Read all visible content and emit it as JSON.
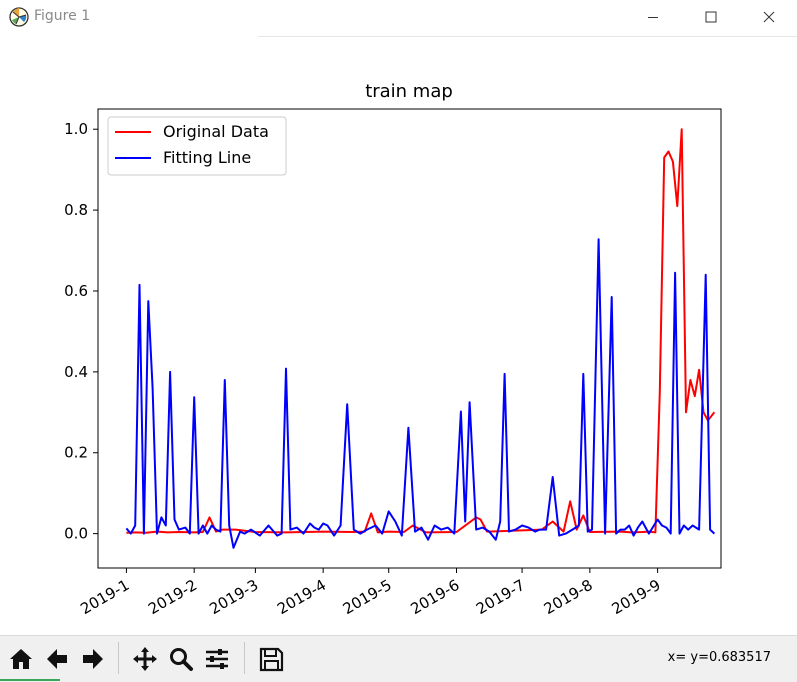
{
  "window": {
    "title": "Figure 1",
    "app_icon": "matplotlib-logo-icon",
    "controls": [
      "minimize-icon",
      "maximize-icon",
      "close-icon"
    ]
  },
  "toolbar": {
    "buttons": [
      {
        "name": "home-button",
        "icon": "home-icon"
      },
      {
        "name": "back-button",
        "icon": "arrow-left-icon"
      },
      {
        "name": "forward-button",
        "icon": "arrow-right-icon"
      },
      {
        "name": "pan-button",
        "icon": "move-cross-icon"
      },
      {
        "name": "zoom-button",
        "icon": "magnifier-icon"
      },
      {
        "name": "configure-subplots-button",
        "icon": "sliders-icon"
      },
      {
        "name": "save-button",
        "icon": "floppy-disk-icon"
      }
    ],
    "coords": "x= y=0.683517"
  },
  "chart_data": {
    "type": "line",
    "title": "train map",
    "xlabel": "",
    "ylabel": "",
    "x_tick_labels": [
      "2019-1",
      "2019-2",
      "2019-3",
      "2019-4",
      "2019-5",
      "2019-6",
      "2019-7",
      "2019-8",
      "2019-9"
    ],
    "y_tick_labels": [
      "0.0",
      "0.2",
      "0.4",
      "0.6",
      "0.8",
      "1.0"
    ],
    "xlim": [
      "2018-12-19",
      "2019-09-30"
    ],
    "ylim": [
      -0.085,
      1.05
    ],
    "grid": false,
    "legend": {
      "location": "upper-left",
      "entries": [
        "Original Data",
        "Fitting Line"
      ]
    },
    "colors": {
      "Original Data": "#ff0000",
      "Fitting Line": "#0000ff"
    },
    "series": [
      {
        "name": "Original Data",
        "x": [
          "2019-01-01",
          "2019-01-05",
          "2019-01-10",
          "2019-01-15",
          "2019-01-20",
          "2019-01-25",
          "2019-02-01",
          "2019-02-05",
          "2019-02-08",
          "2019-02-11",
          "2019-02-14",
          "2019-02-20",
          "2019-03-01",
          "2019-03-15",
          "2019-04-01",
          "2019-04-15",
          "2019-04-20",
          "2019-04-23",
          "2019-04-26",
          "2019-05-01",
          "2019-05-08",
          "2019-05-12",
          "2019-05-18",
          "2019-06-01",
          "2019-06-10",
          "2019-06-12",
          "2019-06-15",
          "2019-07-01",
          "2019-07-10",
          "2019-07-15",
          "2019-07-20",
          "2019-07-23",
          "2019-07-26",
          "2019-07-29",
          "2019-08-01",
          "2019-08-15",
          "2019-08-20",
          "2019-08-25",
          "2019-08-28",
          "2019-08-31",
          "2019-09-02",
          "2019-09-04",
          "2019-09-06",
          "2019-09-08",
          "2019-09-10",
          "2019-09-12",
          "2019-09-14",
          "2019-09-16",
          "2019-09-18",
          "2019-09-20",
          "2019-09-22",
          "2019-09-24",
          "2019-09-27"
        ],
        "y": [
          0.002,
          0.003,
          0.002,
          0.005,
          0.003,
          0.004,
          0.003,
          0.004,
          0.04,
          0.005,
          0.01,
          0.01,
          0.004,
          0.003,
          0.005,
          0.004,
          0.005,
          0.05,
          0.003,
          0.005,
          0.004,
          0.02,
          0.003,
          0.004,
          0.04,
          0.035,
          0.005,
          0.008,
          0.01,
          0.03,
          0.005,
          0.08,
          0.01,
          0.045,
          0.004,
          0.005,
          0.003,
          0.004,
          0.005,
          0.003,
          0.35,
          0.93,
          0.945,
          0.92,
          0.81,
          1.0,
          0.3,
          0.38,
          0.34,
          0.405,
          0.3,
          0.28,
          0.3
        ]
      },
      {
        "name": "Fitting Line",
        "x": [
          "2019-01-01",
          "2019-01-03",
          "2019-01-05",
          "2019-01-07",
          "2019-01-09",
          "2019-01-11",
          "2019-01-13",
          "2019-01-15",
          "2019-01-17",
          "2019-01-19",
          "2019-01-21",
          "2019-01-23",
          "2019-01-25",
          "2019-01-28",
          "2019-01-30",
          "2019-02-01",
          "2019-02-03",
          "2019-02-05",
          "2019-02-07",
          "2019-02-09",
          "2019-02-11",
          "2019-02-13",
          "2019-02-15",
          "2019-02-17",
          "2019-02-19",
          "2019-02-22",
          "2019-02-24",
          "2019-02-27",
          "2019-03-03",
          "2019-03-07",
          "2019-03-11",
          "2019-03-13",
          "2019-03-15",
          "2019-03-17",
          "2019-03-20",
          "2019-03-23",
          "2019-03-26",
          "2019-03-28",
          "2019-03-30",
          "2019-04-01",
          "2019-04-03",
          "2019-04-06",
          "2019-04-09",
          "2019-04-12",
          "2019-04-15",
          "2019-04-18",
          "2019-04-21",
          "2019-04-23",
          "2019-04-25",
          "2019-04-28",
          "2019-05-01",
          "2019-05-04",
          "2019-05-07",
          "2019-05-10",
          "2019-05-13",
          "2019-05-16",
          "2019-05-19",
          "2019-05-22",
          "2019-05-25",
          "2019-05-28",
          "2019-05-31",
          "2019-06-03",
          "2019-06-05",
          "2019-06-07",
          "2019-06-10",
          "2019-06-13",
          "2019-06-16",
          "2019-06-19",
          "2019-06-21",
          "2019-06-23",
          "2019-06-25",
          "2019-06-28",
          "2019-07-01",
          "2019-07-04",
          "2019-07-07",
          "2019-07-09",
          "2019-07-12",
          "2019-07-15",
          "2019-07-18",
          "2019-07-21",
          "2019-07-24",
          "2019-07-27",
          "2019-07-29",
          "2019-07-31",
          "2019-08-02",
          "2019-08-05",
          "2019-08-08",
          "2019-08-11",
          "2019-08-13",
          "2019-08-15",
          "2019-08-17",
          "2019-08-19",
          "2019-08-21",
          "2019-08-23",
          "2019-08-25",
          "2019-08-28",
          "2019-09-01",
          "2019-09-03",
          "2019-09-05",
          "2019-09-07",
          "2019-09-09",
          "2019-09-11",
          "2019-09-13",
          "2019-09-15",
          "2019-09-17",
          "2019-09-20",
          "2019-09-23",
          "2019-09-25",
          "2019-09-27"
        ],
        "y": [
          0.013,
          0.0,
          0.02,
          0.615,
          0.0,
          0.575,
          0.36,
          0.0,
          0.04,
          0.02,
          0.4,
          0.035,
          0.01,
          0.015,
          0.0,
          0.337,
          0.0,
          0.02,
          0.0,
          0.02,
          0.01,
          0.005,
          0.38,
          0.02,
          -0.035,
          0.005,
          0.0,
          0.01,
          -0.005,
          0.02,
          -0.005,
          0.0,
          0.408,
          0.01,
          0.015,
          0.0,
          0.025,
          0.015,
          0.01,
          0.025,
          0.02,
          -0.005,
          0.02,
          0.32,
          0.01,
          0.0,
          0.01,
          0.015,
          0.02,
          0.0,
          0.055,
          0.03,
          -0.005,
          0.262,
          0.005,
          0.015,
          -0.015,
          0.02,
          0.01,
          0.015,
          0.0,
          0.302,
          0.03,
          0.325,
          0.01,
          0.015,
          0.005,
          -0.015,
          0.03,
          0.395,
          0.005,
          0.01,
          0.02,
          0.015,
          0.005,
          0.01,
          0.01,
          0.14,
          -0.005,
          0.0,
          0.01,
          0.02,
          0.395,
          0.005,
          0.01,
          0.728,
          0.0,
          0.585,
          0.0,
          0.01,
          0.01,
          0.02,
          -0.005,
          0.015,
          0.03,
          0.0,
          0.035,
          0.02,
          0.015,
          0.0,
          0.645,
          0.0,
          0.02,
          0.01,
          0.02,
          0.01,
          0.64,
          0.01,
          0.0
        ]
      }
    ]
  }
}
